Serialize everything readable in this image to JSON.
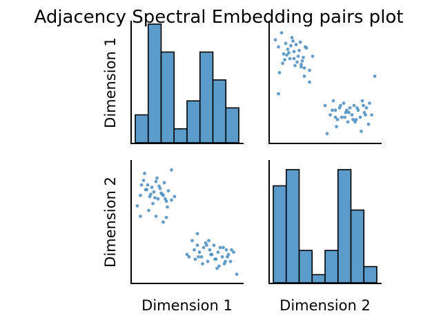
{
  "chart_data": {
    "type": "pairplot",
    "title": "Adjacency Spectral Embedding pairs plot",
    "variables": [
      "Dimension 1",
      "Dimension 2"
    ],
    "colors": {
      "bars": "#5a9bc9",
      "points": "#4a8cbf",
      "edge": "#000000"
    },
    "grid": false,
    "diagonal": {
      "dim1_hist": {
        "counts": [
          4,
          17,
          13,
          2,
          6,
          13,
          9,
          5
        ]
      },
      "dim2_hist": {
        "counts": [
          12,
          14,
          4,
          1,
          4,
          14,
          9,
          2
        ]
      }
    },
    "scatter_dim2_vs_dim1": {
      "x": [
        0.02,
        0.05,
        0.08,
        0.1,
        0.12,
        0.14,
        0.16,
        0.18,
        0.2,
        0.22,
        0.24,
        0.26,
        0.28,
        0.3,
        0.32,
        0.09,
        0.13,
        0.17,
        0.21,
        0.25,
        0.29,
        0.06,
        0.11,
        0.15,
        0.19,
        0.23,
        0.27,
        0.31,
        0.35,
        0.38,
        0.3,
        0.5,
        0.55,
        0.58,
        0.6,
        0.62,
        0.64,
        0.66,
        0.68,
        0.7,
        0.72,
        0.74,
        0.76,
        0.78,
        0.8,
        0.82,
        0.84,
        0.86,
        0.88,
        0.9,
        0.92,
        0.95,
        0.57,
        0.61,
        0.65,
        0.69,
        0.73,
        0.77,
        0.81,
        0.85,
        0.89,
        0.93,
        0.6,
        0.71,
        0.79,
        0.87,
        0.98,
        0.2,
        0.27,
        0.35,
        0.05,
        0.52
      ],
      "y": [
        0.64,
        0.73,
        0.86,
        0.78,
        0.82,
        0.72,
        0.8,
        0.76,
        0.85,
        0.7,
        0.79,
        0.74,
        0.84,
        0.68,
        0.77,
        0.92,
        0.6,
        0.66,
        0.88,
        0.75,
        0.7,
        0.82,
        0.78,
        0.74,
        0.71,
        0.81,
        0.73,
        0.63,
        0.69,
        0.72,
        0.54,
        0.22,
        0.34,
        0.18,
        0.3,
        0.24,
        0.2,
        0.28,
        0.32,
        0.16,
        0.26,
        0.22,
        0.3,
        0.18,
        0.24,
        0.28,
        0.2,
        0.14,
        0.26,
        0.22,
        0.16,
        0.24,
        0.26,
        0.2,
        0.14,
        0.3,
        0.22,
        0.18,
        0.12,
        0.28,
        0.2,
        0.26,
        0.4,
        0.34,
        0.1,
        0.16,
        0.05,
        0.55,
        0.5,
        0.95,
        0.55,
        0.2
      ]
    },
    "scatter_dim1_vs_dim2": {
      "x": [
        0.02,
        0.05,
        0.08,
        0.1,
        0.12,
        0.14,
        0.16,
        0.18,
        0.2,
        0.22,
        0.24,
        0.26,
        0.28,
        0.3,
        0.32,
        0.09,
        0.13,
        0.17,
        0.21,
        0.25,
        0.29,
        0.06,
        0.11,
        0.15,
        0.19,
        0.23,
        0.27,
        0.31,
        0.35,
        0.38,
        0.3,
        0.5,
        0.55,
        0.58,
        0.6,
        0.62,
        0.64,
        0.66,
        0.68,
        0.7,
        0.72,
        0.74,
        0.76,
        0.78,
        0.8,
        0.82,
        0.84,
        0.86,
        0.88,
        0.9,
        0.92,
        0.95,
        0.57,
        0.61,
        0.65,
        0.69,
        0.73,
        0.77,
        0.81,
        0.85,
        0.89,
        0.93,
        0.6,
        0.71,
        0.79,
        0.87,
        0.98,
        0.2,
        0.27,
        0.35,
        0.05,
        0.52
      ],
      "y": [
        0.86,
        0.8,
        0.92,
        0.74,
        0.83,
        0.78,
        0.7,
        0.88,
        0.76,
        0.82,
        0.72,
        0.84,
        0.68,
        0.62,
        0.79,
        0.66,
        0.73,
        0.81,
        0.64,
        0.77,
        0.71,
        0.58,
        0.69,
        0.75,
        0.85,
        0.67,
        0.63,
        0.8,
        0.6,
        0.72,
        0.55,
        0.3,
        0.22,
        0.34,
        0.26,
        0.18,
        0.28,
        0.2,
        0.32,
        0.24,
        0.16,
        0.28,
        0.22,
        0.3,
        0.18,
        0.26,
        0.2,
        0.34,
        0.24,
        0.28,
        0.14,
        0.22,
        0.26,
        0.12,
        0.3,
        0.2,
        0.24,
        0.18,
        0.28,
        0.08,
        0.22,
        0.32,
        0.2,
        0.26,
        0.16,
        0.3,
        0.55,
        0.7,
        0.65,
        0.5,
        0.4,
        0.06
      ]
    }
  }
}
